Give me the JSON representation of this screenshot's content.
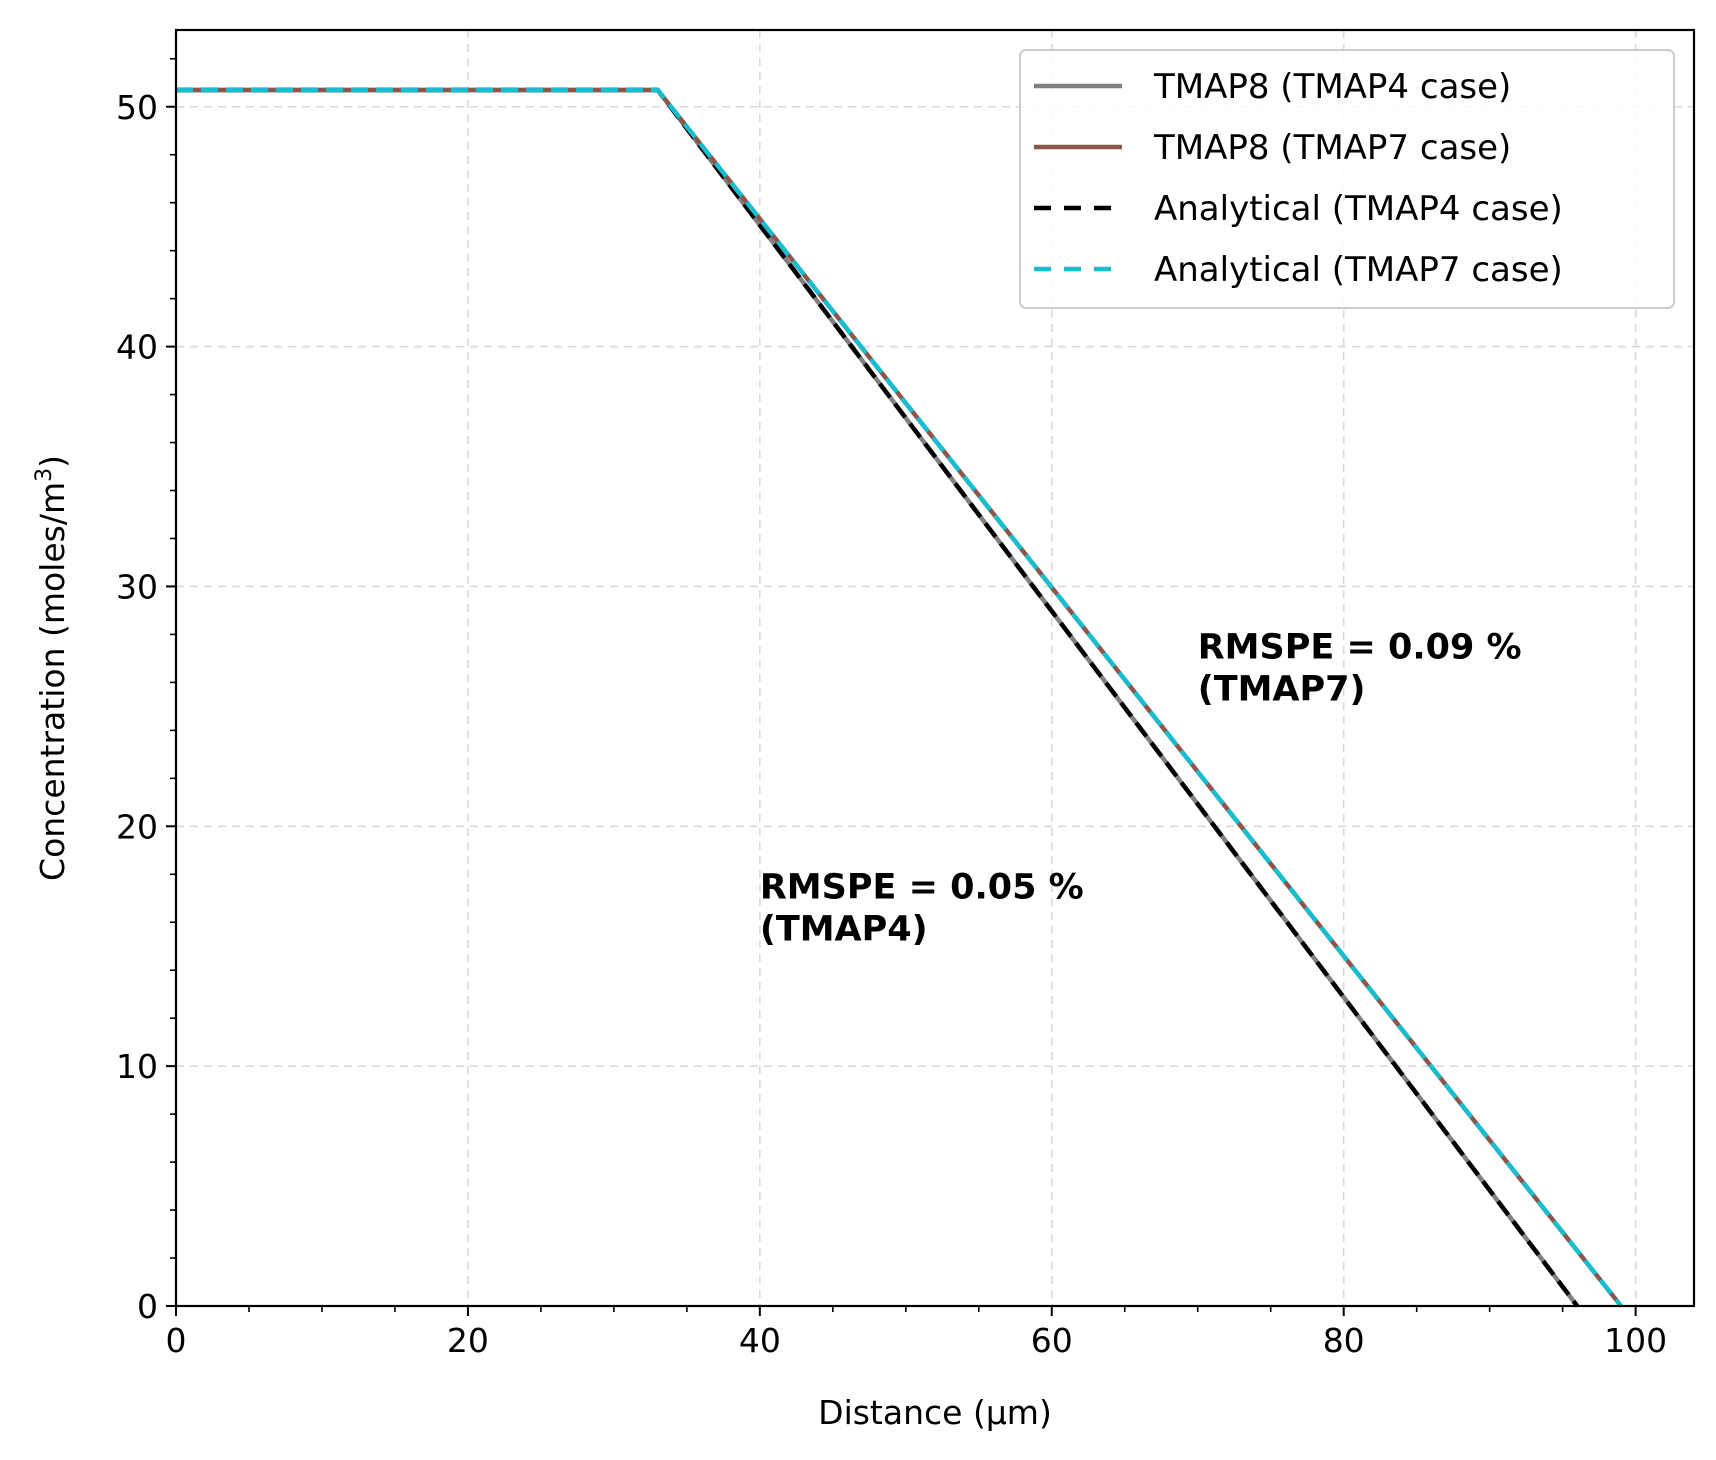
{
  "chart_data": {
    "type": "line",
    "title": "",
    "xlabel": "Distance (μm)",
    "ylabel": "Concentration (moles/m3)",
    "ylabel_base": "Concentration (moles/m",
    "ylabel_sup": "3",
    "ylabel_close": ")",
    "xlim": [
      0,
      104
    ],
    "ylim": [
      0,
      53.2
    ],
    "xticks": [
      0,
      20,
      40,
      60,
      80,
      100
    ],
    "xtick_labels": [
      "0",
      "20",
      "40",
      "60",
      "80",
      "100"
    ],
    "yticks": [
      0,
      10,
      20,
      30,
      40,
      50
    ],
    "ytick_labels": [
      "0",
      "10",
      "20",
      "30",
      "40",
      "50"
    ],
    "x_minor_step": 5,
    "y_minor_step": 2,
    "grid": true,
    "legend_position": "top-right",
    "series": [
      {
        "name": "TMAP8 (TMAP4 case)",
        "color": "#808080",
        "style": "solid",
        "x": [
          0,
          33,
          96
        ],
        "y": [
          50.7,
          50.7,
          0
        ]
      },
      {
        "name": "TMAP8 (TMAP7 case)",
        "color": "#8c564b",
        "style": "solid",
        "x": [
          0,
          33,
          99
        ],
        "y": [
          50.7,
          50.7,
          0
        ]
      },
      {
        "name": "Analytical (TMAP4 case)",
        "color": "#000000",
        "style": "dashed",
        "x": [
          0,
          33,
          96
        ],
        "y": [
          50.7,
          50.7,
          0
        ]
      },
      {
        "name": "Analytical (TMAP7 case)",
        "color": "#17becf",
        "style": "dashed",
        "x": [
          0,
          33,
          99
        ],
        "y": [
          50.7,
          50.7,
          0
        ]
      }
    ],
    "annotations": [
      {
        "lines": [
          "RMSPE = 0.09 %",
          "(TMAP7)"
        ],
        "x": 70,
        "y": 27
      },
      {
        "lines": [
          "RMSPE = 0.05 %",
          "(TMAP4)"
        ],
        "x": 40,
        "y": 17
      }
    ]
  }
}
